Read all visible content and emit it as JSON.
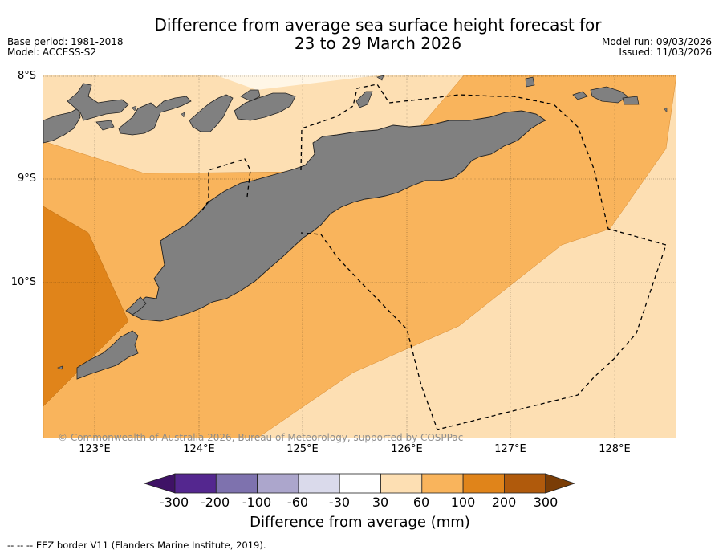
{
  "title_line1": "Difference from average sea surface height forecast for",
  "title_line2": "23 to 29 March 2026",
  "meta_left": {
    "base_period": "Base period: 1981-2018",
    "model": "Model: ACCESS-S2"
  },
  "meta_right": {
    "model_run": "Model run: 09/03/2026",
    "issued": "Issued: 11/03/2026"
  },
  "axes": {
    "latitude_labels": [
      "8°S",
      "9°S",
      "10°S"
    ],
    "longitude_labels": [
      "123°E",
      "124°E",
      "125°E",
      "126°E",
      "127°E",
      "128°E"
    ]
  },
  "copyright": "© Commonwealth of Australia 2026, Bureau of Meteorology, supported by COSPPac",
  "colorbar": {
    "ticks": [
      "-300",
      "-200",
      "-100",
      "-60",
      "-30",
      "30",
      "60",
      "100",
      "200",
      "300"
    ],
    "colors": [
      "#3f1266",
      "#54278f",
      "#7e72ae",
      "#aca6cc",
      "#dadaeb",
      "#ffffff",
      "#fddfb3",
      "#f9b45c",
      "#e0841a",
      "#b05a0c",
      "#7a3d06"
    ],
    "title": "Difference from average (mm)"
  },
  "footnote": "--  --  -- EEZ border V11 (Flanders Marine Institute, 2019).",
  "legend_colors": {
    "land": "#808080",
    "band_30_60": "#fddfb3",
    "band_60_100": "#f9b45c",
    "band_100_200": "#e0841a"
  }
}
